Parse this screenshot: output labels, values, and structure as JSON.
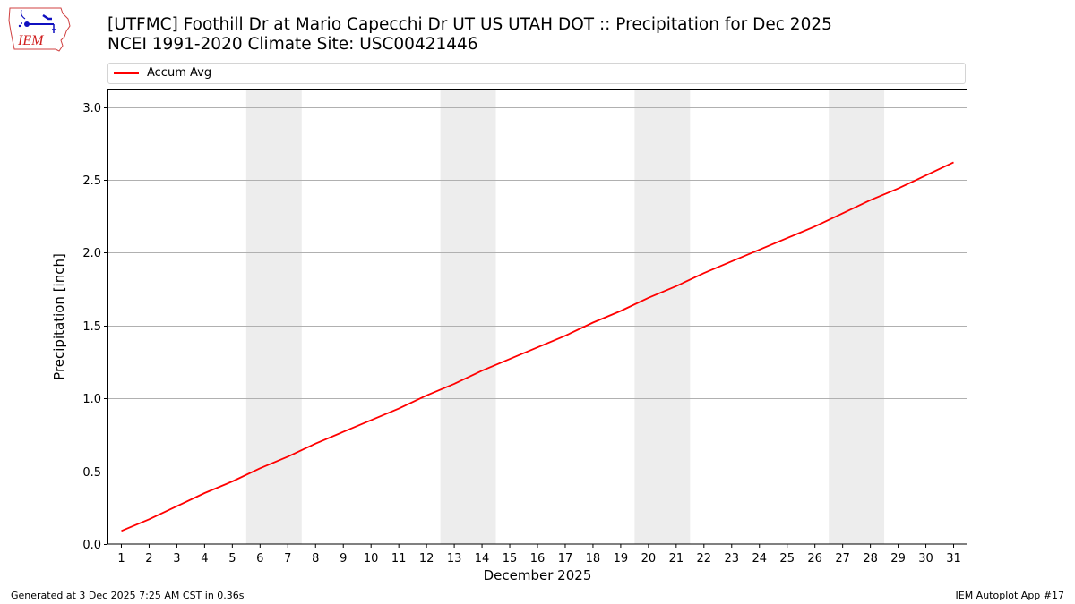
{
  "header": {
    "logo_text": "IEM",
    "title_line1": "[UTFMC] Foothill Dr at Mario Capecchi Dr UT US UTAH DOT :: Precipitation for Dec 2025",
    "title_line2": "NCEI 1991-2020 Climate Site: USC00421446"
  },
  "legend": {
    "items": [
      {
        "label": "Accum Avg",
        "color": "#ff0000"
      }
    ]
  },
  "footer": {
    "generated": "Generated at 3 Dec 2025 7:25 AM CST in 0.36s",
    "app": "IEM Autoplot App #17"
  },
  "chart_data": {
    "type": "line",
    "title": "[UTFMC] Foothill Dr at Mario Capecchi Dr UT US UTAH DOT :: Precipitation for Dec 2025",
    "subtitle": "NCEI 1991-2020 Climate Site: USC00421446",
    "xlabel": "December 2025",
    "ylabel": "Precipitation [inch]",
    "x": [
      1,
      2,
      3,
      4,
      5,
      6,
      7,
      8,
      9,
      10,
      11,
      12,
      13,
      14,
      15,
      16,
      17,
      18,
      19,
      20,
      21,
      22,
      23,
      24,
      25,
      26,
      27,
      28,
      29,
      30,
      31
    ],
    "series": [
      {
        "name": "Accum Avg",
        "color": "#ff0000",
        "values": [
          0.09,
          0.17,
          0.26,
          0.35,
          0.43,
          0.52,
          0.6,
          0.69,
          0.77,
          0.85,
          0.93,
          1.02,
          1.1,
          1.19,
          1.27,
          1.35,
          1.43,
          1.52,
          1.6,
          1.69,
          1.77,
          1.86,
          1.94,
          2.02,
          2.1,
          2.18,
          2.27,
          2.36,
          2.44,
          2.53,
          2.62
        ]
      }
    ],
    "xlim": [
      0.5,
      31.5
    ],
    "ylim": [
      0,
      3.12
    ],
    "yticks": [
      0.0,
      0.5,
      1.0,
      1.5,
      2.0,
      2.5,
      3.0
    ],
    "ytick_labels": [
      "0.0",
      "0.5",
      "1.0",
      "1.5",
      "2.0",
      "2.5",
      "3.0"
    ],
    "xtick_labels": [
      "1",
      "2",
      "3",
      "4",
      "5",
      "6",
      "7",
      "8",
      "9",
      "10",
      "11",
      "12",
      "13",
      "14",
      "15",
      "16",
      "17",
      "18",
      "19",
      "20",
      "21",
      "22",
      "23",
      "24",
      "25",
      "26",
      "27",
      "28",
      "29",
      "30",
      "31"
    ],
    "weekend_bands": [
      [
        5.5,
        7.5
      ],
      [
        12.5,
        14.5
      ],
      [
        19.5,
        21.5
      ],
      [
        26.5,
        28.5
      ]
    ],
    "grid": "y",
    "legend_position": "top, above plot"
  }
}
